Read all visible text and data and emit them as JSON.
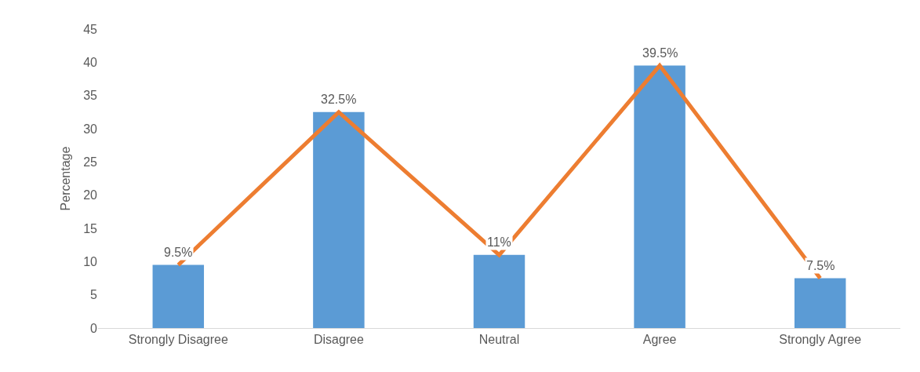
{
  "chart_data": {
    "type": "bar",
    "ylabel": "Percentage",
    "categories": [
      "Strongly Disagree",
      "Disagree",
      "Neutral",
      "Agree",
      "Strongly Agree"
    ],
    "series": [
      {
        "color": "#5b9bd5",
        "values": [
          9.5,
          32.5,
          11,
          39.5,
          7.5
        ],
        "value_labels": [
          "9.5%",
          "32.5%",
          "11%",
          "39.5%",
          "7.5%"
        ]
      },
      {
        "type": "line",
        "color": "#ed7d31",
        "values": [
          9.5,
          32.5,
          11,
          39.5,
          7.5
        ],
        "marker": "none",
        "line_style": "solid"
      }
    ],
    "ylim": [
      0,
      45
    ],
    "yticks": [
      0,
      5,
      10,
      15,
      20,
      25,
      30,
      35,
      40,
      45
    ]
  }
}
